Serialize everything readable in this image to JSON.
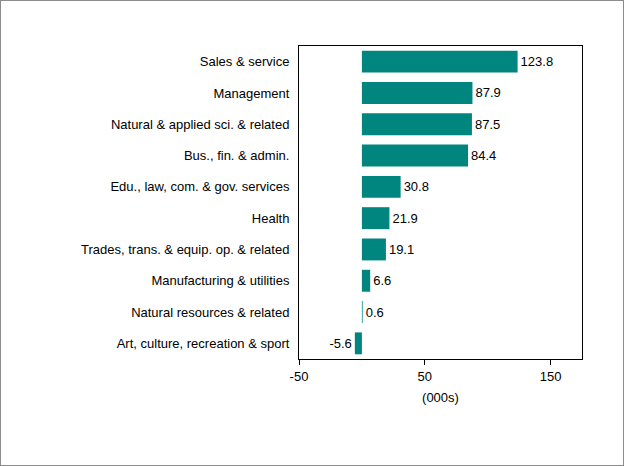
{
  "chart_data": {
    "type": "bar",
    "orientation": "horizontal",
    "categories": [
      "Sales & service",
      "Management",
      "Natural & applied sci. & related",
      "Bus., fin. & admin.",
      "Edu., law, com. & gov. services",
      "Health",
      "Trades, trans. & equip. op. & related",
      "Manufacturing & utilities",
      "Natural resources & related",
      "Art, culture, recreation & sport"
    ],
    "values": [
      123.8,
      87.9,
      87.5,
      84.4,
      30.8,
      21.9,
      19.1,
      6.6,
      0.6,
      -5.6
    ],
    "color": "#00857f",
    "x_label": "(000s)",
    "xlim": [
      -50,
      175
    ],
    "xticks": [
      -50,
      50,
      150
    ],
    "grid": false,
    "data_labels": true
  }
}
